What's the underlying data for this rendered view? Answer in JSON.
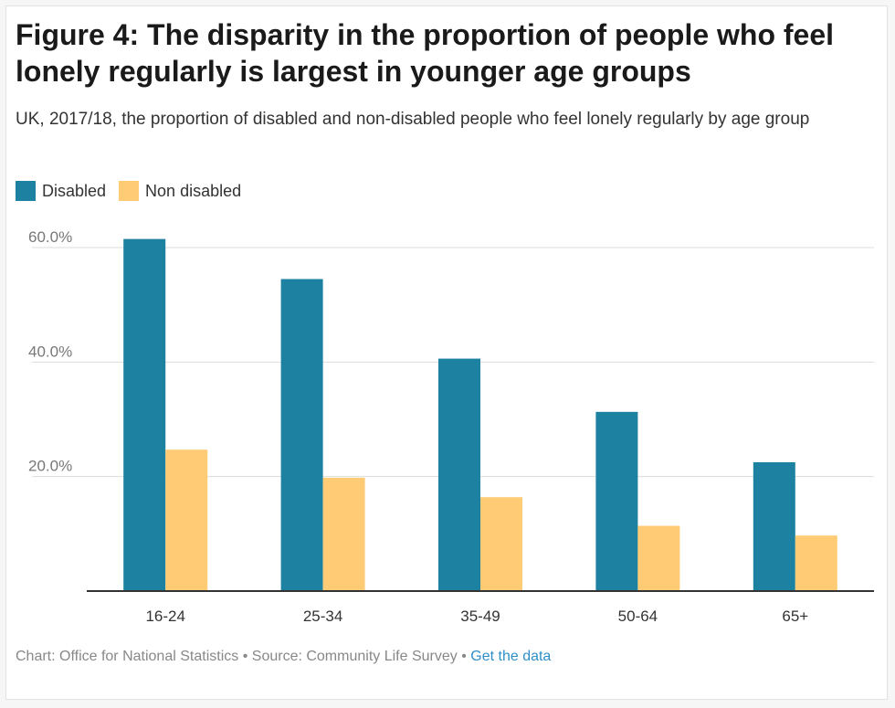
{
  "header": {
    "title": "Figure 4: The disparity in the proportion of people who feel lonely regularly is largest in younger age groups",
    "subtitle": "UK, 2017/18, the proportion of disabled and non-disabled people who feel lonely regularly by age group"
  },
  "legend": [
    {
      "label": "Disabled",
      "color": "#1d81a2"
    },
    {
      "label": "Non disabled",
      "color": "#ffcb74"
    }
  ],
  "footer": {
    "chart_credit": "Chart: Office for National Statistics",
    "separator": "•",
    "source": "Source: Community Life Survey",
    "get_data": "Get the data"
  },
  "chart_data": {
    "type": "bar",
    "categories": [
      "16-24",
      "25-34",
      "35-49",
      "50-64",
      "65+"
    ],
    "series": [
      {
        "name": "Disabled",
        "color": "#1d81a2",
        "values": [
          61.5,
          54.5,
          40.6,
          31.3,
          22.5
        ]
      },
      {
        "name": "Non disabled",
        "color": "#ffcb74",
        "values": [
          24.7,
          19.8,
          16.4,
          11.4,
          9.7
        ]
      }
    ],
    "y_ticks": [
      20,
      40,
      60
    ],
    "y_tick_labels": [
      "20.0%",
      "40.0%",
      "60.0%"
    ],
    "ylim": [
      0,
      60
    ],
    "grid": true,
    "legend_position": "top-left",
    "xlabel": "",
    "ylabel": ""
  }
}
